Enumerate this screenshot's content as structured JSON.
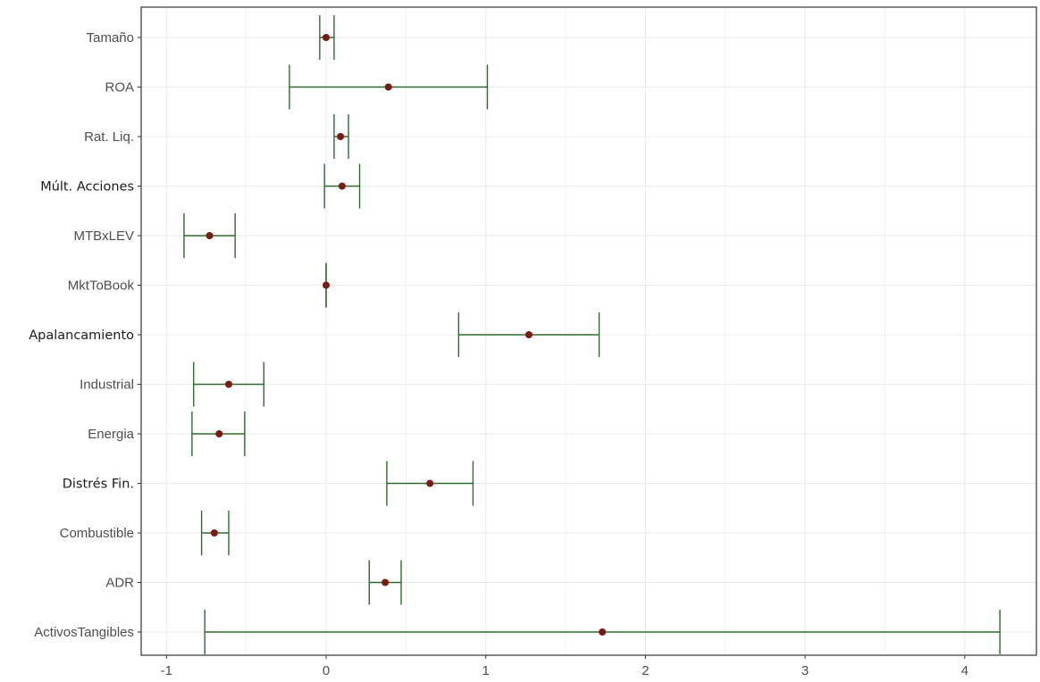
{
  "chart_data": {
    "type": "scatter",
    "title": "",
    "xlabel": "",
    "ylabel": "",
    "xlim": [
      -1.1,
      4.4
    ],
    "xticks": [
      "-1",
      "0",
      "1",
      "2",
      "3",
      "4"
    ],
    "grid": true,
    "legend": "none",
    "colors": {
      "point": "#7b1a12",
      "errorbar": "#2e6b2e",
      "grid": "#ebebeb",
      "border": "#333333"
    },
    "categories": [
      "Tamaño",
      "ROA",
      "Rat. Liq.",
      "Múlt. Acciones",
      "MTBxLEV",
      "MktToBook",
      "Apalancamiento",
      "Industrial",
      "Energia",
      "Distrés Fin.",
      "Combustible",
      "ADR",
      "ActivosTangibles"
    ],
    "emphasized_labels": [
      "Múlt. Acciones",
      "Apalancamiento",
      "Distrés Fin."
    ],
    "estimates": [
      0.0,
      0.39,
      0.09,
      0.1,
      -0.73,
      0.0,
      1.27,
      -0.61,
      -0.67,
      0.65,
      -0.7,
      0.37,
      1.73
    ],
    "lower": [
      -0.04,
      -0.23,
      0.05,
      -0.01,
      -0.89,
      0.0,
      0.83,
      -0.83,
      -0.84,
      0.38,
      -0.78,
      0.27,
      -0.76
    ],
    "upper": [
      0.05,
      1.01,
      0.14,
      0.21,
      -0.57,
      0.0,
      1.71,
      -0.39,
      -0.51,
      0.92,
      -0.61,
      0.47,
      4.22
    ]
  }
}
